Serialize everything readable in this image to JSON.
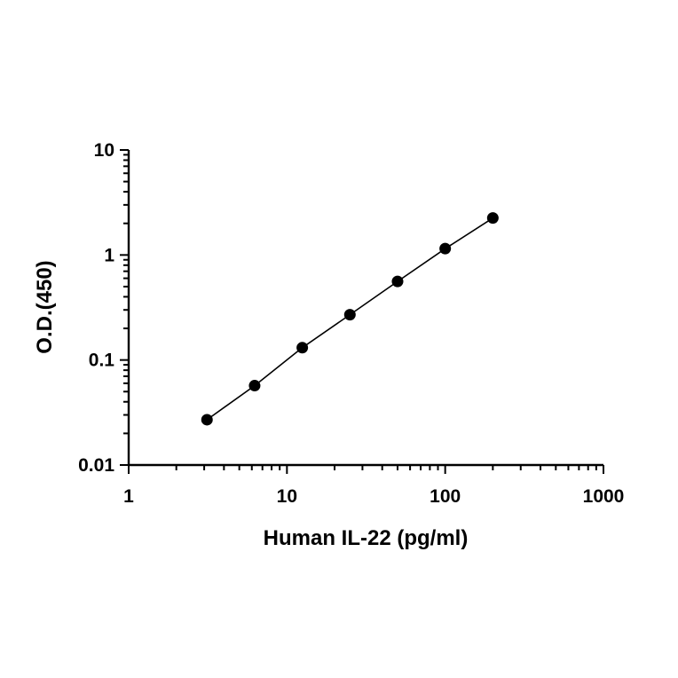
{
  "chart_data": {
    "type": "scatter",
    "title": "",
    "xlabel": "Human IL-22 (pg/ml)",
    "ylabel": "O.D.(450)",
    "xscale": "log",
    "yscale": "log",
    "xlim": [
      1,
      1000
    ],
    "ylim": [
      0.01,
      10
    ],
    "x_ticks": [
      {
        "value": 1,
        "label": "1"
      },
      {
        "value": 10,
        "label": "10"
      },
      {
        "value": 100,
        "label": "100"
      },
      {
        "value": 1000,
        "label": "1000"
      }
    ],
    "y_ticks": [
      {
        "value": 0.01,
        "label": "0.01"
      },
      {
        "value": 0.1,
        "label": "0.1"
      },
      {
        "value": 1,
        "label": "1"
      },
      {
        "value": 10,
        "label": "10"
      }
    ],
    "grid": false,
    "legend": "none",
    "fit_line": true,
    "series": [
      {
        "x": [
          3.125,
          6.25,
          12.5,
          25,
          50,
          100,
          200
        ],
        "y": [
          0.027,
          0.057,
          0.131,
          0.27,
          0.56,
          1.15,
          2.25
        ]
      }
    ],
    "color": "#000000"
  }
}
